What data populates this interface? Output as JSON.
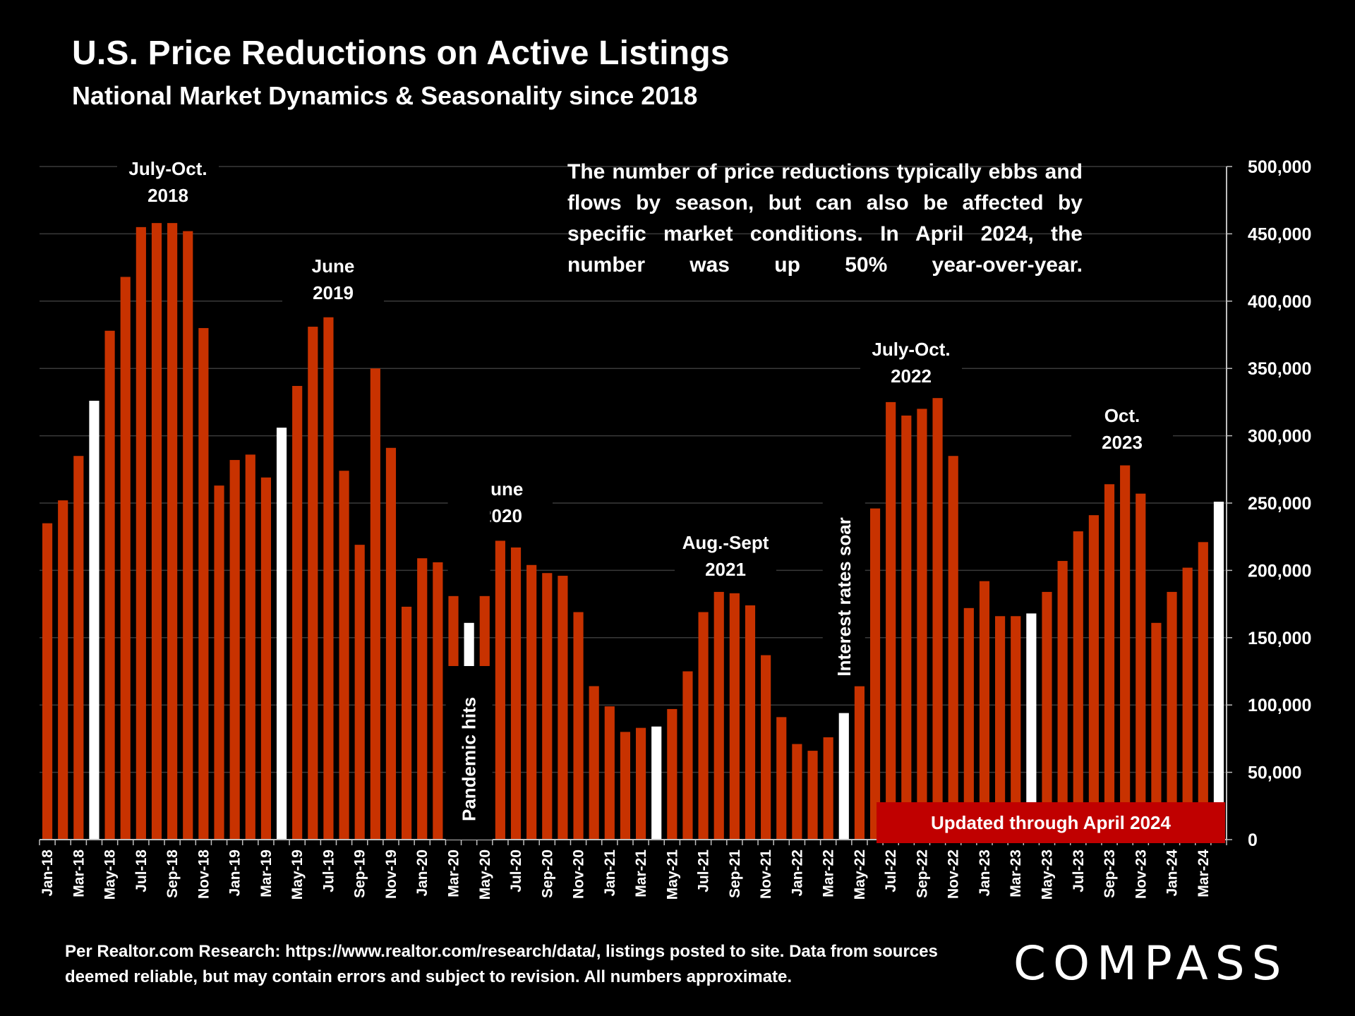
{
  "title": "U.S. Price Reductions on Active Listings",
  "subtitle": "National Market Dynamics & Seasonality since 2018",
  "info_text": "The number of price reductions typically ebbs and flows by season, but can also be affected by specific market conditions. In April 2024, the number was up 50% year-over-year.",
  "updated_label": "Updated through April 2024",
  "footnote": "Per Realtor.com Research:  https://www.realtor.com/research/data/, listings posted to site. Data from sources deemed reliable, but may contain errors and subject to revision. All numbers approximate.",
  "logo": "COMPASS",
  "colors": {
    "bar": "#c83200",
    "highlight": "#ffffff",
    "background": "#000000",
    "updated_box": "#c00000"
  },
  "chart_data": {
    "type": "bar",
    "title": "U.S. Price Reductions on Active Listings",
    "subtitle": "National Market Dynamics & Seasonality since 2018",
    "ylim": [
      0,
      500000
    ],
    "y_axis_position": "right",
    "grid": true,
    "y_ticks": [
      "0",
      "50,000",
      "100,000",
      "150,000",
      "200,000",
      "250,000",
      "300,000",
      "350,000",
      "400,000",
      "450,000",
      "500,000"
    ],
    "x_tick_labels": [
      "Jan-18",
      "Mar-18",
      "May-18",
      "Jul-18",
      "Sep-18",
      "Nov-18",
      "Jan-19",
      "Mar-19",
      "May-19",
      "Jul-19",
      "Sep-19",
      "Nov-19",
      "Jan-20",
      "Mar-20",
      "May-20",
      "Jul-20",
      "Sep-20",
      "Nov-20",
      "Jan-21",
      "Mar-21",
      "May-21",
      "Jul-21",
      "Sep-21",
      "Nov-21",
      "Jan-22",
      "Mar-22",
      "May-22",
      "Jul-22",
      "Sep-22",
      "Nov-22",
      "Jan-23",
      "Mar-23",
      "May-23",
      "Jul-23",
      "Sep-23",
      "Nov-23",
      "Jan-24",
      "Mar-24"
    ],
    "categories": [
      "Jan-18",
      "Feb-18",
      "Mar-18",
      "Apr-18",
      "May-18",
      "Jun-18",
      "Jul-18",
      "Aug-18",
      "Sep-18",
      "Oct-18",
      "Nov-18",
      "Dec-18",
      "Jan-19",
      "Feb-19",
      "Mar-19",
      "Apr-19",
      "May-19",
      "Jun-19",
      "Jul-19",
      "Aug-19",
      "Sep-19",
      "Oct-19",
      "Nov-19",
      "Dec-19",
      "Jan-20",
      "Feb-20",
      "Mar-20",
      "Apr-20",
      "May-20",
      "Jun-20",
      "Jul-20",
      "Aug-20",
      "Sep-20",
      "Oct-20",
      "Nov-20",
      "Dec-20",
      "Jan-21",
      "Feb-21",
      "Mar-21",
      "Apr-21",
      "May-21",
      "Jun-21",
      "Jul-21",
      "Aug-21",
      "Sep-21",
      "Oct-21",
      "Nov-21",
      "Dec-21",
      "Jan-22",
      "Feb-22",
      "Mar-22",
      "Apr-22",
      "May-22",
      "Jun-22",
      "Jul-22",
      "Aug-22",
      "Sep-22",
      "Oct-22",
      "Nov-22",
      "Dec-22",
      "Jan-23",
      "Feb-23",
      "Mar-23",
      "Apr-23",
      "May-23",
      "Jun-23",
      "Jul-23",
      "Aug-23",
      "Sep-23",
      "Oct-23",
      "Nov-23",
      "Dec-23",
      "Jan-24",
      "Feb-24",
      "Mar-24",
      "Apr-24"
    ],
    "values": [
      235000,
      252000,
      285000,
      326000,
      378000,
      418000,
      455000,
      458000,
      458000,
      452000,
      380000,
      263000,
      282000,
      286000,
      269000,
      306000,
      337000,
      381000,
      388000,
      274000,
      219000,
      350000,
      291000,
      173000,
      209000,
      206000,
      214000,
      161000,
      200000,
      222000,
      217000,
      204000,
      198000,
      196000,
      169000,
      114000,
      99000,
      80000,
      83000,
      84000,
      97000,
      125000,
      169000,
      184000,
      183000,
      174000,
      137000,
      91000,
      71000,
      66000,
      76000,
      94000,
      163000,
      246000,
      325000,
      315000,
      320000,
      328000,
      285000,
      172000,
      192000,
      166000,
      166000,
      168000,
      184000,
      207000,
      229000,
      241000,
      264000,
      278000,
      257000,
      161000,
      184000,
      202000,
      221000,
      251000
    ],
    "highlighted": [
      "Apr-18",
      "Apr-19",
      "Apr-20",
      "Apr-21",
      "Apr-22",
      "Apr-23",
      "Apr-24"
    ],
    "annotations": [
      {
        "lines": [
          "July-Oct.",
          "2018"
        ],
        "anchor": "Jul-18"
      },
      {
        "lines": [
          "June",
          "2019"
        ],
        "anchor": "Jun-19"
      },
      {
        "lines": [
          "June",
          "2020"
        ],
        "anchor": "Jun-20"
      },
      {
        "lines": [
          "Aug.-Sept",
          "2021"
        ],
        "anchor": "Aug-21"
      },
      {
        "lines": [
          "July-Oct.",
          "2022"
        ],
        "anchor": "Aug-22"
      },
      {
        "lines": [
          "Oct.",
          "2023"
        ],
        "anchor": "Oct-23"
      },
      {
        "lines": [
          "Pandemic hits"
        ],
        "anchor": "Apr-20",
        "rotated": true
      },
      {
        "lines": [
          "Interest rates soar"
        ],
        "anchor": "Apr-22",
        "rotated": true
      }
    ]
  }
}
